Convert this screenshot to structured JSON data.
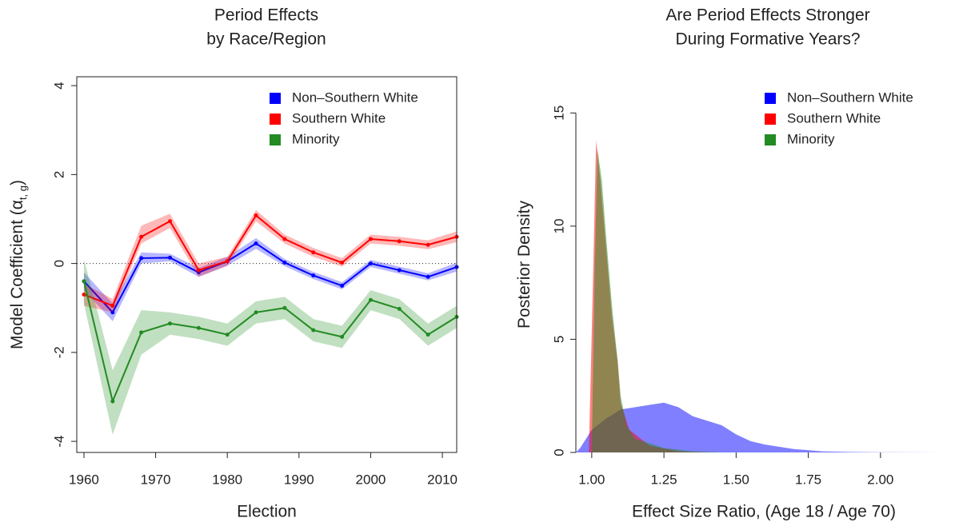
{
  "chart_data": [
    {
      "type": "line",
      "title": [
        "Period Effects",
        "by Race/Region"
      ],
      "xlabel": "Election",
      "ylabel": [
        "Model Coefficient (α",
        "t, g",
        ")"
      ],
      "x": [
        1960,
        1964,
        1968,
        1972,
        1976,
        1980,
        1984,
        1988,
        1992,
        1996,
        2000,
        2004,
        2008,
        2012
      ],
      "xlim": [
        1959,
        2012
      ],
      "xticks": [
        1960,
        1970,
        1980,
        1990,
        2000,
        2010
      ],
      "ylim": [
        -4.25,
        4.2
      ],
      "yticks": [
        -4,
        -2,
        0,
        2,
        4
      ],
      "hline": 0,
      "legend": "top-right",
      "series": [
        {
          "name": "Non–Southern White",
          "color": "#0000ff",
          "values": [
            -0.4,
            -1.1,
            0.12,
            0.13,
            -0.2,
            0.05,
            0.45,
            0.02,
            -0.27,
            -0.5,
            0.0,
            -0.15,
            -0.3,
            -0.08
          ],
          "lower": [
            -0.6,
            -1.3,
            0.0,
            0.05,
            -0.3,
            -0.05,
            0.33,
            -0.06,
            -0.35,
            -0.58,
            -0.08,
            -0.23,
            -0.38,
            -0.18
          ],
          "upper": [
            -0.2,
            -0.9,
            0.25,
            0.22,
            -0.1,
            0.15,
            0.57,
            0.1,
            -0.19,
            -0.42,
            0.08,
            -0.07,
            -0.22,
            0.02
          ]
        },
        {
          "name": "Southern White",
          "color": "#ff0000",
          "values": [
            -0.7,
            -0.95,
            0.6,
            0.95,
            -0.15,
            0.05,
            1.08,
            0.55,
            0.25,
            0.02,
            0.55,
            0.5,
            0.42,
            0.6
          ],
          "lower": [
            -0.95,
            -1.1,
            0.45,
            0.8,
            -0.3,
            -0.05,
            0.95,
            0.45,
            0.15,
            -0.07,
            0.45,
            0.4,
            0.32,
            0.48
          ],
          "upper": [
            -0.45,
            -0.8,
            0.85,
            1.12,
            0.0,
            0.15,
            1.2,
            0.65,
            0.35,
            0.12,
            0.65,
            0.6,
            0.52,
            0.72
          ]
        },
        {
          "name": "Minority",
          "color": "#228b22",
          "values": [
            -0.4,
            -3.1,
            -1.55,
            -1.35,
            -1.45,
            -1.6,
            -1.1,
            -1.0,
            -1.5,
            -1.65,
            -0.82,
            -1.02,
            -1.6,
            -1.2
          ],
          "lower": [
            -0.9,
            -3.85,
            -2.05,
            -1.6,
            -1.7,
            -1.85,
            -1.35,
            -1.25,
            -1.75,
            -1.9,
            -1.05,
            -1.25,
            -1.85,
            -1.45
          ],
          "upper": [
            0.1,
            -2.4,
            -1.05,
            -1.1,
            -1.2,
            -1.35,
            -0.85,
            -0.75,
            -1.25,
            -1.4,
            -0.6,
            -0.8,
            -1.35,
            -0.95
          ]
        }
      ]
    },
    {
      "type": "area",
      "title": [
        "Are Period Effects Stronger",
        "During Formative Years?"
      ],
      "xlabel": "Effect Size Ratio, (Age 18 / Age 70)",
      "ylabel": [
        "Posterior Density"
      ],
      "xlim": [
        0.945,
        2.247
      ],
      "xticks": [
        {
          "value": 1,
          "label": "1.00"
        },
        {
          "value": 1.25,
          "label": "1.25"
        },
        {
          "value": 1.5,
          "label": "1.50"
        },
        {
          "value": 1.75,
          "label": "1.75"
        },
        {
          "value": 2,
          "label": "2.00"
        }
      ],
      "ylim": [
        0,
        16.6
      ],
      "yticks": [
        0,
        5,
        10,
        15
      ],
      "legend": "top-right",
      "series": [
        {
          "name": "Non–Southern White",
          "color": "#0000ff",
          "x": [
            0.945,
            0.96,
            1.0,
            1.05,
            1.1,
            1.15,
            1.2,
            1.25,
            1.3,
            1.35,
            1.4,
            1.45,
            1.5,
            1.55,
            1.6,
            1.7,
            1.8,
            1.9,
            2.0,
            2.2
          ],
          "values": [
            0,
            0.2,
            1.0,
            1.5,
            1.9,
            2.0,
            2.1,
            2.2,
            2.0,
            1.6,
            1.4,
            1.2,
            0.8,
            0.5,
            0.35,
            0.15,
            0.05,
            0.02,
            0.01,
            0
          ]
        },
        {
          "name": "Southern White",
          "color": "#ff0000",
          "x": [
            0.99,
            1.005,
            1.015,
            1.03,
            1.05,
            1.07,
            1.09,
            1.1,
            1.13,
            1.2,
            1.3,
            1.4
          ],
          "values": [
            0,
            8,
            13.8,
            12,
            9,
            6,
            4,
            2.2,
            1,
            0.3,
            0.05,
            0
          ]
        },
        {
          "name": "Minority",
          "color": "#228b22",
          "x": [
            1.0,
            1.01,
            1.02,
            1.035,
            1.05,
            1.07,
            1.09,
            1.1,
            1.12,
            1.15,
            1.2,
            1.25,
            1.35,
            1.45
          ],
          "values": [
            0,
            8,
            13.4,
            12,
            9.5,
            6.5,
            4,
            2.5,
            1.2,
            0.6,
            0.4,
            0.2,
            0.05,
            0
          ]
        }
      ]
    }
  ]
}
